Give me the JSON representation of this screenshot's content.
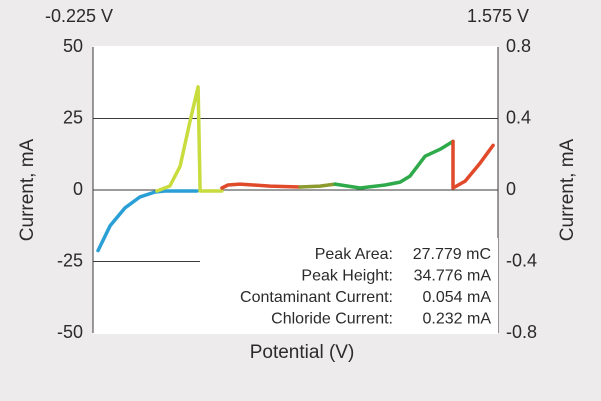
{
  "chart_data": {
    "type": "line",
    "xlabel": "Potential (V)",
    "ylabel": "Current, mA",
    "y2label": "Current, mA",
    "xlim": [
      -0.225,
      1.575
    ],
    "xticks": [
      {
        "value": -0.225,
        "label": "-0.225 V"
      },
      {
        "value": 1.575,
        "label": "1.575 V"
      }
    ],
    "ylim": [
      -50,
      50
    ],
    "yticks": [
      50,
      25,
      0,
      -25,
      -50
    ],
    "y2lim": [
      -0.8,
      0.8
    ],
    "y2ticks": [
      0.8,
      0.4,
      0,
      -0.4,
      -0.8
    ],
    "grid": true,
    "series": [
      {
        "color": "#2a9fd6",
        "x": [
          -0.203,
          -0.149,
          -0.083,
          -0.016,
          0.051,
          0.095,
          0.237
        ],
        "values": [
          -21.2,
          -12.5,
          -6.25,
          -2.4,
          -0.7,
          -0.35,
          -0.35
        ]
      },
      {
        "color": "#c9dc3e",
        "x": [
          0.059,
          0.117,
          0.162,
          0.206,
          0.242,
          0.251,
          0.348
        ],
        "values": [
          -0.35,
          1.4,
          8.3,
          24,
          36.1,
          -0.35,
          -0.35
        ]
      },
      {
        "color": "#e04a2a",
        "axis": "y2",
        "x": [
          0.348,
          0.375,
          0.428,
          0.562,
          0.695
        ],
        "values": [
          0.011,
          0.028,
          0.033,
          0.022,
          0.017
        ]
      },
      {
        "color": "#8c9a2e",
        "axis": "y2",
        "x": [
          0.695,
          0.784,
          0.851
        ],
        "values": [
          0.017,
          0.022,
          0.033
        ]
      },
      {
        "color": "#2eaa4a",
        "axis": "y2",
        "x": [
          0.851,
          0.962,
          1.073,
          1.14,
          1.184,
          1.251,
          1.318,
          1.375
        ],
        "values": [
          0.033,
          0.011,
          0.028,
          0.044,
          0.078,
          0.189,
          0.228,
          0.272
        ]
      },
      {
        "color": "#e04a2a",
        "axis": "y2",
        "x": [
          1.375,
          1.375,
          1.429,
          1.495,
          1.553
        ],
        "values": [
          0.272,
          0.011,
          0.05,
          0.15,
          0.25
        ]
      }
    ],
    "annotations": [
      {
        "label": "Peak Area:",
        "value": "27.779 mC"
      },
      {
        "label": "Peak Height:",
        "value": "34.776 mA"
      },
      {
        "label": "Contaminant Current:",
        "value": "0.054 mA"
      },
      {
        "label": "Chloride Current:",
        "value": "0.232 mA"
      }
    ]
  }
}
